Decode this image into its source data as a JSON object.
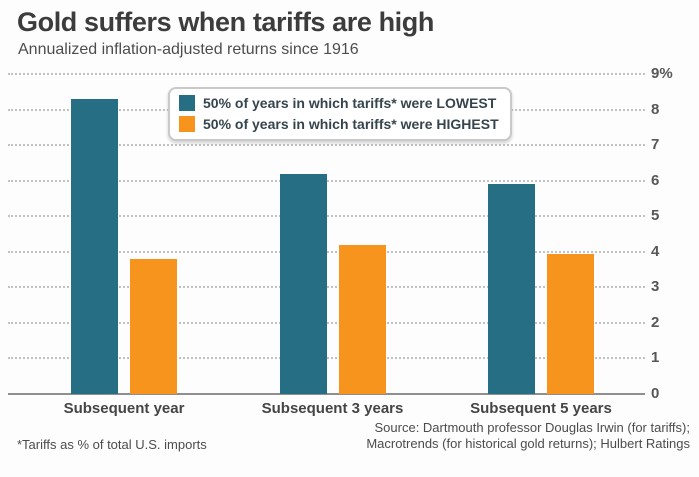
{
  "header": {
    "title": "Gold suffers when tariffs are high",
    "subtitle": "Annualized inflation-adjusted returns since 1916"
  },
  "legend": {
    "items": [
      {
        "label": "50% of years in which tariffs* were LOWEST",
        "color": "#266e84"
      },
      {
        "label": "50% of years in which tariffs* were HIGHEST",
        "color": "#f7941e"
      }
    ]
  },
  "chart_data": {
    "type": "bar",
    "title": "Gold suffers when tariffs are high",
    "subtitle": "Annualized inflation-adjusted returns since 1916",
    "categories": [
      "Subsequent year",
      "Subsequent 3 years",
      "Subsequent 5 years"
    ],
    "series": [
      {
        "name": "50% of years in which tariffs* were LOWEST",
        "color": "#266e84",
        "values": [
          8.3,
          6.2,
          5.9
        ]
      },
      {
        "name": "50% of years in which tariffs* were HIGHEST",
        "color": "#f7941e",
        "values": [
          3.8,
          4.2,
          3.95
        ]
      }
    ],
    "ylim": [
      0,
      9
    ],
    "yticks": [
      0,
      1,
      2,
      3,
      4,
      5,
      6,
      7,
      8,
      9
    ],
    "ytick_labels": [
      "0",
      "1",
      "2",
      "3",
      "4",
      "5",
      "6",
      "7",
      "8",
      "9%"
    ],
    "axis_side": "right",
    "grid": "horizontal-dotted",
    "legend_position": "top-center-overlay"
  },
  "footnote": "*Tariffs as % of total U.S. imports",
  "source": {
    "line1": "Source: Dartmouth professor Douglas Irwin (for tariffs);",
    "line2": "Macrotrends (for historical gold returns); Hulbert Ratings"
  }
}
